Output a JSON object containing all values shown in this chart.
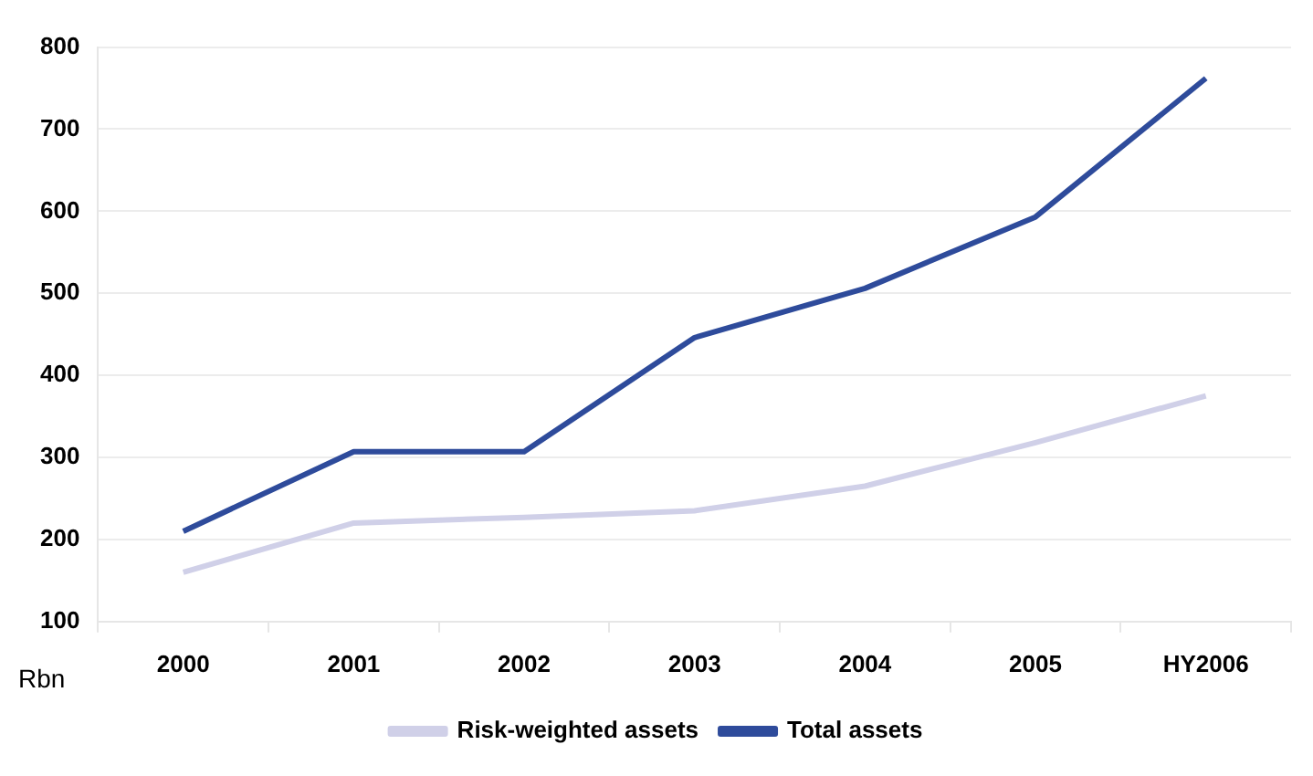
{
  "chart_data": {
    "type": "line",
    "ylabel": "Rbn",
    "categories": [
      "2000",
      "2001",
      "2002",
      "2003",
      "2004",
      "2005",
      "HY2006"
    ],
    "series": [
      {
        "name": "Risk-weighted assets",
        "color": "#d0d0e8",
        "values": [
          160,
          220,
          227,
          235,
          265,
          318,
          375
        ]
      },
      {
        "name": "Total assets",
        "color": "#2e4b9b",
        "values": [
          210,
          307,
          307,
          446,
          506,
          593,
          762
        ]
      }
    ],
    "ylim": [
      100,
      800
    ],
    "yticks": [
      100,
      200,
      300,
      400,
      500,
      600,
      700,
      800
    ],
    "grid": "y",
    "legend": "bottom",
    "marker": "none",
    "line_style": "solid"
  }
}
